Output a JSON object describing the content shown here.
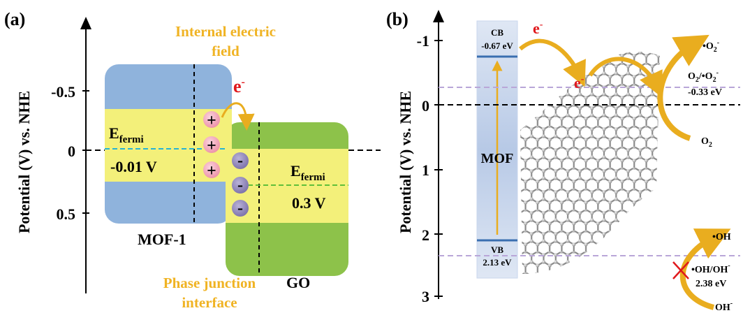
{
  "panel_a": {
    "label": "(a)",
    "y_axis_label": "Potential (V) vs. NHE",
    "ticks": [
      "-0.5",
      "0",
      "0.5"
    ],
    "field_label_line1": "Internal electric",
    "field_label_line2": "field",
    "electron_label": "e",
    "electron_sup": "-",
    "mof_fermi_label": "E",
    "mof_fermi_sub": "fermi",
    "mof_fermi_value": "-0.01 V",
    "go_fermi_label": "E",
    "go_fermi_sub": "fermi",
    "go_fermi_value": "0.3 V",
    "mof_name": "MOF-1",
    "go_name": "GO",
    "junction_line1": "Phase junction",
    "junction_line2": "interface",
    "plus": "+",
    "minus": "-"
  },
  "panel_b": {
    "label": "(b)",
    "y_axis_label": "Potential (V) vs. NHE",
    "ticks": [
      "-1",
      "0",
      "1",
      "2",
      "3"
    ],
    "cb_label": "CB",
    "cb_value": "-0.67 eV",
    "vb_label": "VB",
    "vb_value": "2.13 eV",
    "mof_label": "MOF",
    "electron_label": "e",
    "electron_sup": "-",
    "o2_radical": "•O",
    "o2_radical_sub": "2",
    "o2_radical_sup": "-",
    "o2_couple_a": "O",
    "o2_couple_a_sub": "2",
    "o2_couple_b": "/•O",
    "o2_couple_b_sub": "2",
    "o2_couple_b_sup": "-",
    "o2_potential": "-0.33 eV",
    "o2_reactant": "O",
    "o2_reactant_sub": "2",
    "oh_radical": "•OH",
    "oh_couple": "•OH/OH",
    "oh_couple_sup": "-",
    "oh_potential": "2.38 eV",
    "oh_reactant": "OH",
    "oh_reactant_sup": "-"
  },
  "colors": {
    "mof_block": "#8fb3dc",
    "go_block": "#8dc24a",
    "band_yellow": "#f3f07a",
    "arrow_orange": "#e9ad1f",
    "label_orange": "#f0b323",
    "electron_red": "#e0181c",
    "fermi_cyan": "#26b3d6",
    "fermi_green": "#5fbf3a",
    "dashed_purple": "#b9a6d8",
    "vb_cb_blue": "#3a6fb0",
    "mof_column": "#c8d6ec"
  }
}
